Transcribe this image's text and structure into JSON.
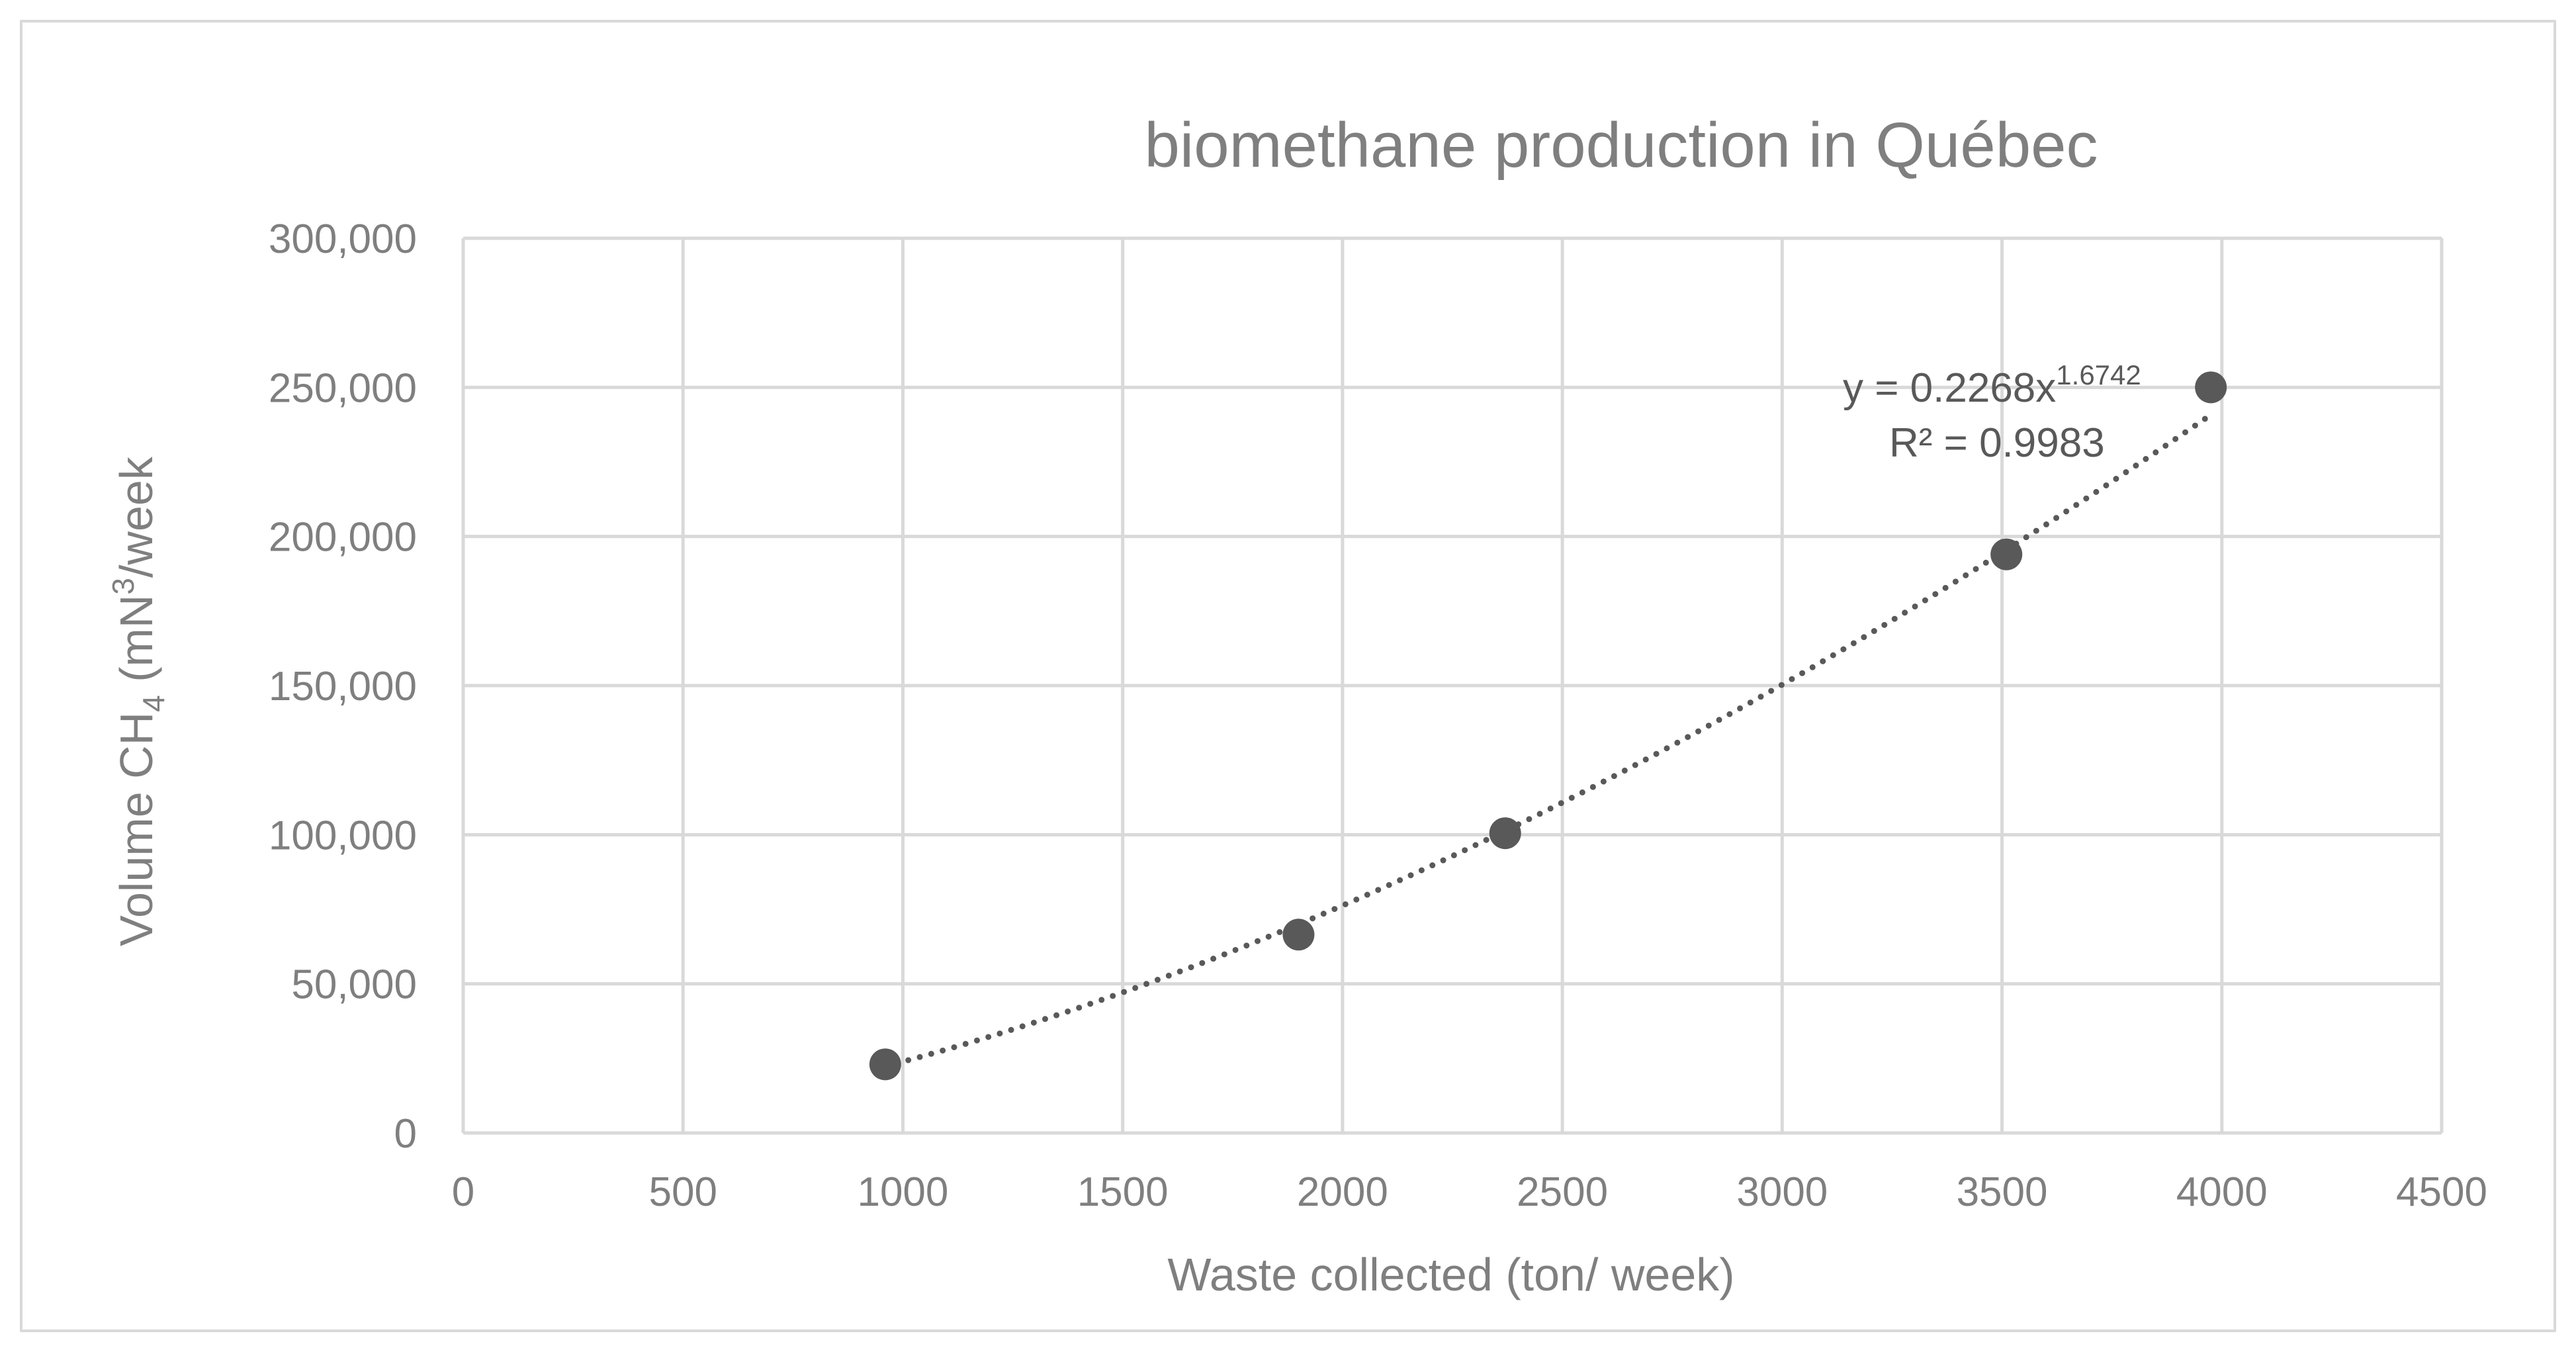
{
  "chart_data": {
    "type": "scatter",
    "title": "biomethane production in Québec",
    "xlabel": "Waste collected (ton/ week)",
    "ylabel": {
      "prefix": "Volume CH",
      "sub": "4",
      "middle": " (mN",
      "sup": "3",
      "suffix": "/week"
    },
    "xlim": [
      0,
      4500
    ],
    "ylim": [
      0,
      300000
    ],
    "x_ticks": [
      "0",
      "500",
      "1000",
      "1500",
      "2000",
      "2500",
      "3000",
      "3500",
      "4000",
      "4500"
    ],
    "y_ticks": [
      "0",
      "50,000",
      "100,000",
      "150,000",
      "200,000",
      "250,000",
      "300,000"
    ],
    "grid": true,
    "series": [
      {
        "points": [
          {
            "x": 960,
            "y": 23000
          },
          {
            "x": 1900,
            "y": 66500
          },
          {
            "x": 2370,
            "y": 100500
          },
          {
            "x": 3510,
            "y": 194000
          },
          {
            "x": 3975,
            "y": 250000
          }
        ]
      }
    ],
    "trendline": {
      "type": "power",
      "coefficient": 0.2268,
      "exponent": 1.6742,
      "x_range": [
        960,
        3975
      ],
      "equation_prefix": "y = 0.2268x",
      "equation_exponent": "1.6742",
      "r_squared": "R² = 0.9983"
    }
  }
}
